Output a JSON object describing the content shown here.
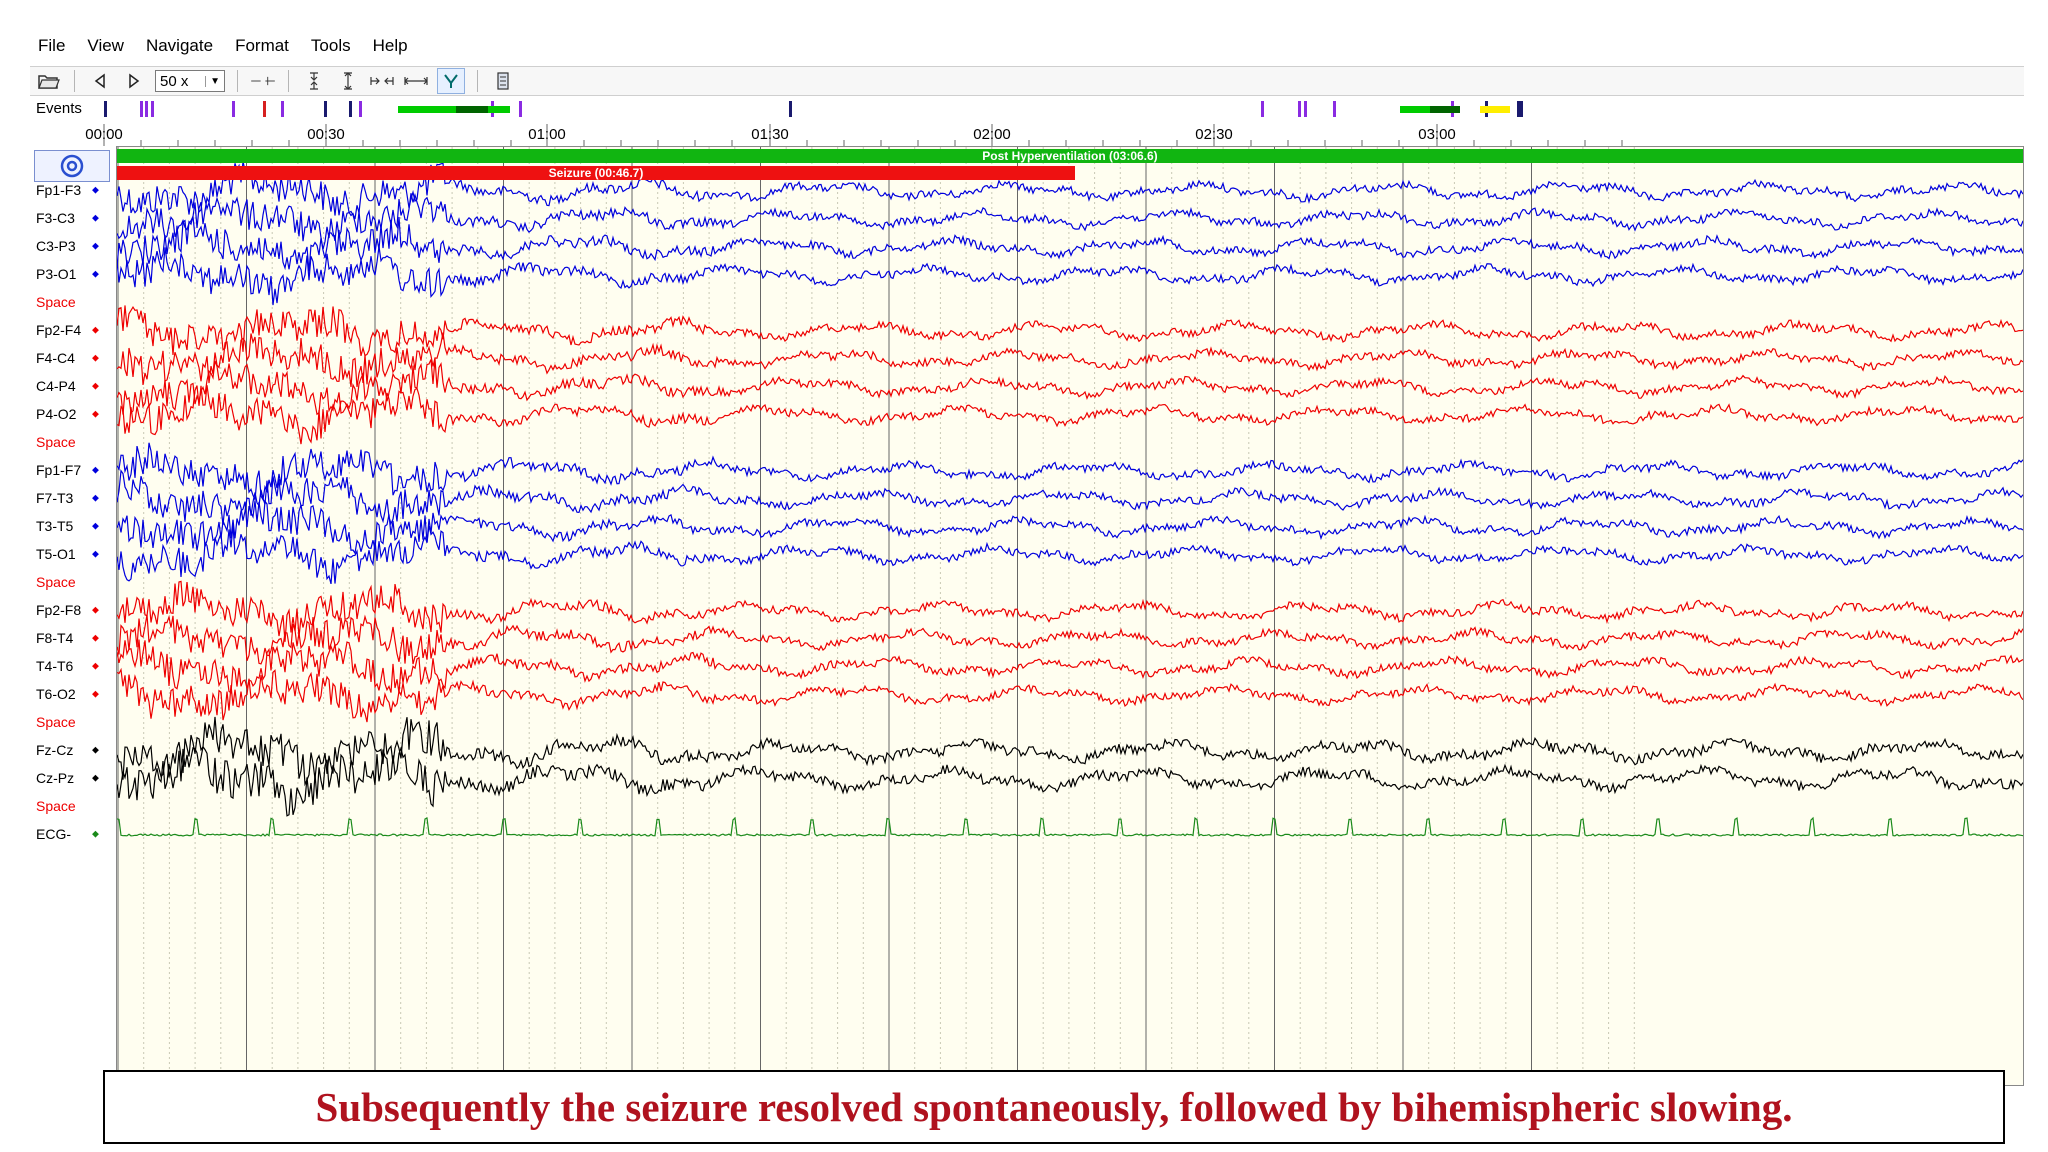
{
  "menu": [
    "File",
    "View",
    "Navigate",
    "Format",
    "Tools",
    "Help"
  ],
  "toolbar": {
    "zoom_value": "50 x",
    "icons": [
      "open-folder-icon",
      "previous-icon",
      "next-icon",
      "zoom-select",
      "horizontal-line-icon",
      "vertical-compress-icon",
      "vertical-expand-icon",
      "horizontal-compress-icon",
      "horizontal-expand-icon",
      "filter-icon",
      "page-icon"
    ]
  },
  "events": {
    "label": "Events",
    "colors": {
      "violet": "#8a2be2",
      "navy": "#1a1a6e",
      "green": "#00cc00",
      "darkgreen": "#006400",
      "yellow": "#ffee00",
      "red": "#d62020"
    }
  },
  "timeline": {
    "ticks": [
      "00:00",
      "00:30",
      "01:00",
      "01:30",
      "02:00",
      "02:30",
      "03:00"
    ]
  },
  "annotations": {
    "post_hyperventilation": "Post Hyperventilation (03:06.6)",
    "seizure": "Seizure (00:46.7)",
    "green_color": "#11b511",
    "red_color": "#ee1111"
  },
  "channels": [
    {
      "label": "Fp1-F3",
      "group": "blue"
    },
    {
      "label": "F3-C3",
      "group": "blue"
    },
    {
      "label": "C3-P3",
      "group": "blue"
    },
    {
      "label": "P3-O1",
      "group": "blue"
    },
    {
      "label": "Space",
      "group": "space"
    },
    {
      "label": "Fp2-F4",
      "group": "red"
    },
    {
      "label": "F4-C4",
      "group": "red"
    },
    {
      "label": "C4-P4",
      "group": "red"
    },
    {
      "label": "P4-O2",
      "group": "red"
    },
    {
      "label": "Space",
      "group": "space"
    },
    {
      "label": "Fp1-F7",
      "group": "blue"
    },
    {
      "label": "F7-T3",
      "group": "blue"
    },
    {
      "label": "T3-T5",
      "group": "blue"
    },
    {
      "label": "T5-O1",
      "group": "blue"
    },
    {
      "label": "Space",
      "group": "space"
    },
    {
      "label": "Fp2-F8",
      "group": "red"
    },
    {
      "label": "F8-T4",
      "group": "red"
    },
    {
      "label": "T4-T6",
      "group": "red"
    },
    {
      "label": "T6-O2",
      "group": "red"
    },
    {
      "label": "Space",
      "group": "space"
    },
    {
      "label": "Fz-Cz",
      "group": "black"
    },
    {
      "label": "Cz-Pz",
      "group": "black"
    },
    {
      "label": "Space",
      "group": "space"
    },
    {
      "label": "ECG-",
      "group": "ecg"
    }
  ],
  "colors": {
    "blue": "#0000dd",
    "red": "#ee0000",
    "black": "#000000",
    "ecg": "#1a8a1a",
    "space": "#ee0000",
    "label_dark": "#000000",
    "plot_bg": "#fffef0"
  },
  "caption": "Subsequently the seizure resolved spontaneously, followed by bihemispheric slowing."
}
